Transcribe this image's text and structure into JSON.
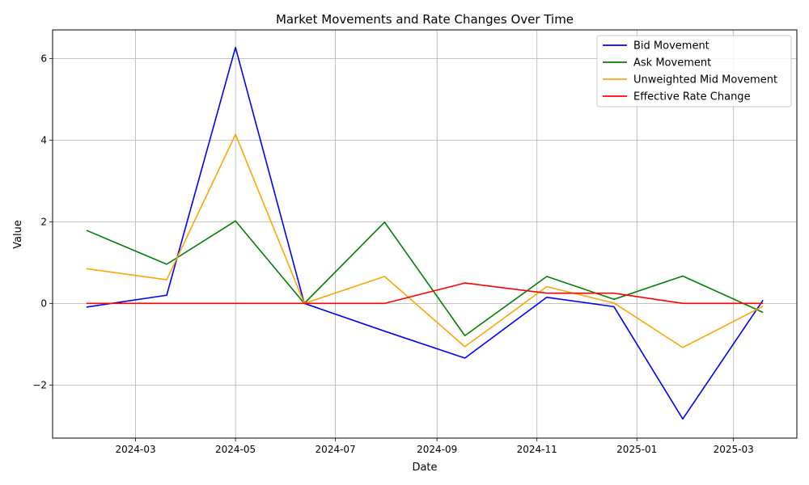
{
  "chart_data": {
    "type": "line",
    "title": "Market Movements and Rate Changes Over Time",
    "xlabel": "Date",
    "ylabel": "Value",
    "x_ticks": [
      "2024-03",
      "2024-05",
      "2024-07",
      "2024-09",
      "2024-11",
      "2025-01",
      "2025-03"
    ],
    "y_ticks": [
      "−2",
      "0",
      "2",
      "4",
      "6"
    ],
    "ylim": [
      -3.3,
      6.7
    ],
    "grid": true,
    "legend_position": "top-right",
    "x": [
      "2024-01-31",
      "2024-03-20",
      "2024-05-01",
      "2024-06-12",
      "2024-07-31",
      "2024-09-18",
      "2024-11-07",
      "2024-12-18",
      "2025-01-29",
      "2025-03-19"
    ],
    "series": [
      {
        "name": "Bid Movement",
        "color": "#0000ff",
        "values": [
          -0.09,
          0.2,
          6.27,
          0.0,
          -0.68,
          -1.34,
          0.15,
          -0.08,
          -2.83,
          0.08
        ]
      },
      {
        "name": "Ask Movement",
        "color": "#008000",
        "values": [
          1.79,
          0.96,
          2.02,
          0.0,
          1.99,
          -0.79,
          0.66,
          0.1,
          0.67,
          -0.22
        ]
      },
      {
        "name": "Unweighted Mid Movement",
        "color": "#ffa500",
        "values": [
          0.85,
          0.58,
          4.14,
          0.0,
          0.66,
          -1.06,
          0.41,
          0.01,
          -1.08,
          -0.07
        ]
      },
      {
        "name": "Effective Rate Change",
        "color": "#ff0000",
        "values": [
          0.0,
          0.0,
          0.0,
          0.0,
          0.0,
          0.5,
          0.25,
          0.25,
          0.0,
          0.0
        ]
      }
    ]
  }
}
